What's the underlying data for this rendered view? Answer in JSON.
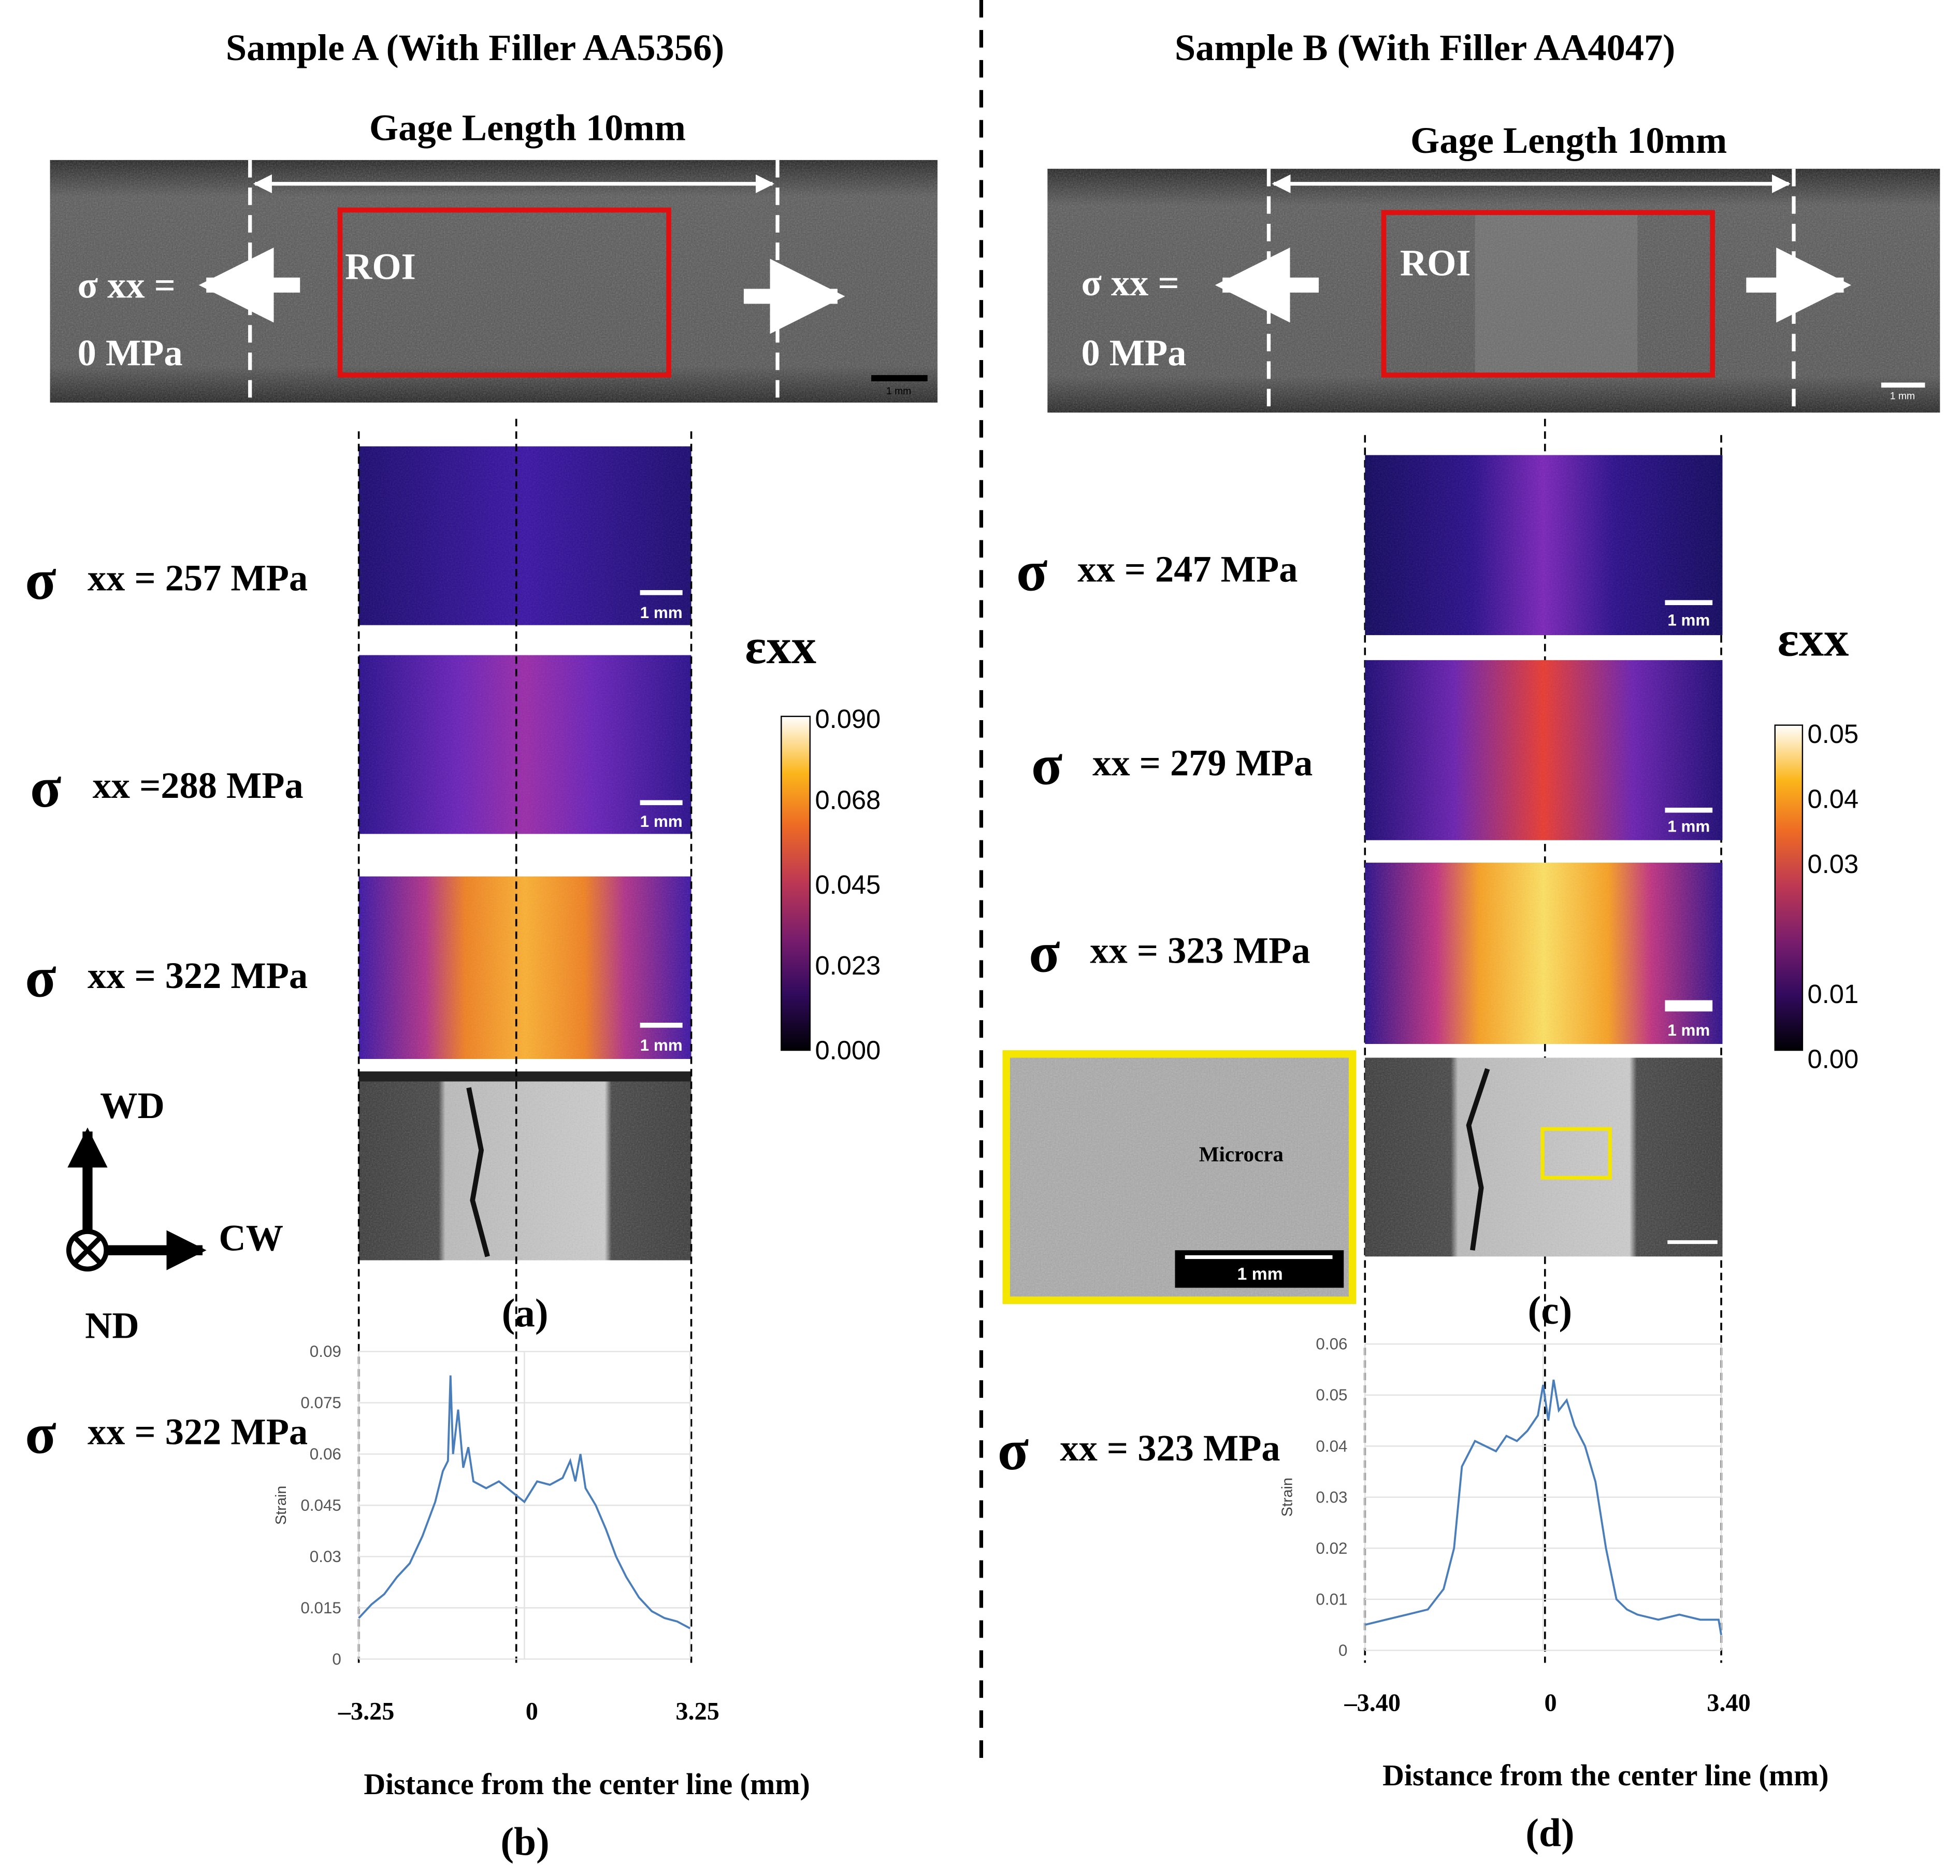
{
  "sample_a": {
    "title": "Sample A (With Filler AA5356)",
    "gage_label": "Gage Length 10mm",
    "roi_label": "ROI",
    "initial_stress": [
      "σ xx =",
      "0 MPa"
    ],
    "photo_scale": "1 mm",
    "maps": [
      {
        "sigma": "σ",
        "label": "xx = 257 MPa",
        "scale": "1 mm"
      },
      {
        "sigma": "σ",
        "label": "xx =288 MPa",
        "scale": "1 mm"
      },
      {
        "sigma": "σ",
        "label": "xx = 322 MPa",
        "scale": "1 mm"
      }
    ],
    "panel_label": "(a)",
    "colorbar": {
      "title": "εxx",
      "lim": [
        0,
        0.09
      ],
      "ticks": [
        {
          "value": 0.09,
          "label": "0.090"
        },
        {
          "value": 0.068,
          "label": "0.068"
        },
        {
          "value": 0.045,
          "label": "0.045"
        },
        {
          "value": 0.023,
          "label": "0.023"
        },
        {
          "value": 0,
          "label": "0.000"
        }
      ]
    }
  },
  "sample_b": {
    "title": "Sample B (With Filler AA4047)",
    "gage_label": "Gage Length 10mm",
    "roi_label": "ROI",
    "initial_stress": [
      "σ xx =",
      "0 MPa"
    ],
    "photo_scale": "1 mm",
    "maps": [
      {
        "sigma": "σ",
        "label": "xx = 247 MPa",
        "scale": "1 mm"
      },
      {
        "sigma": "σ",
        "label": "xx = 279 MPa",
        "scale": "1 mm"
      },
      {
        "sigma": "σ",
        "label": "xx = 323 MPa",
        "scale": "1 mm"
      }
    ],
    "inset_label": "Microcra",
    "inset_scale": "1 mm",
    "panel_label": "(c)",
    "colorbar": {
      "title": "εxx",
      "lim": [
        0,
        0.05
      ],
      "ticks": [
        0.05,
        0.04,
        0.03,
        0.01,
        {
          "value": 0,
          "label": "0.00"
        }
      ]
    }
  },
  "axes_legend": {
    "wd": "WD",
    "cw": "CW",
    "nd": "ND"
  },
  "chart_data": [
    {
      "type": "line",
      "y_label": "Strain",
      "x_label": "Distance from the center line (mm)",
      "panel_label": "(b)",
      "stress_sigma": "σ",
      "stress_label": "xx = 322 MPa",
      "grid": true,
      "xlim": [
        -3.25,
        3.25
      ],
      "xticks": [
        {
          "value": -3.25,
          "label": "–3.25"
        },
        0,
        3.25
      ],
      "ylim": [
        0,
        0.09
      ],
      "yticks": [
        0,
        0.015,
        0.03,
        0.045,
        0.06,
        0.075,
        0.09
      ],
      "series": [
        {
          "color": "#4a7ebb",
          "x": [
            -3.25,
            -3.0,
            -2.75,
            -2.5,
            -2.25,
            -2.0,
            -1.75,
            -1.6,
            -1.5,
            -1.45,
            -1.4,
            -1.3,
            -1.2,
            -1.1,
            -1.0,
            -0.75,
            -0.5,
            -0.25,
            0,
            0.25,
            0.5,
            0.75,
            0.9,
            1.0,
            1.1,
            1.2,
            1.4,
            1.6,
            1.8,
            2.0,
            2.25,
            2.5,
            2.75,
            3.0,
            3.25
          ],
          "values": [
            0.012,
            0.016,
            0.019,
            0.024,
            0.028,
            0.036,
            0.046,
            0.055,
            0.058,
            0.083,
            0.06,
            0.073,
            0.056,
            0.062,
            0.052,
            0.05,
            0.052,
            0.049,
            0.046,
            0.052,
            0.051,
            0.053,
            0.058,
            0.052,
            0.06,
            0.05,
            0.045,
            0.038,
            0.03,
            0.024,
            0.018,
            0.014,
            0.012,
            0.011,
            0.009
          ]
        }
      ]
    },
    {
      "type": "line",
      "y_label": "Strain",
      "x_label": "Distance from the center line (mm)",
      "panel_label": "(d)",
      "stress_sigma": "σ",
      "stress_label": "xx = 323 MPa",
      "grid": true,
      "xlim": [
        -3.4,
        3.4
      ],
      "xticks": [
        {
          "value": -3.4,
          "label": "–3.40"
        },
        0,
        {
          "value": 3.4,
          "label": "3.40"
        }
      ],
      "ylim": [
        0,
        0.06
      ],
      "yticks": [
        0,
        0.01,
        0.02,
        0.03,
        0.04,
        0.05,
        0.06
      ],
      "series": [
        {
          "color": "#4a7ebb",
          "x": [
            -3.4,
            -3.0,
            -2.6,
            -2.2,
            -1.9,
            -1.7,
            -1.55,
            -1.45,
            -1.3,
            -1.1,
            -0.9,
            -0.7,
            -0.5,
            -0.3,
            -0.1,
            0,
            0.1,
            0.2,
            0.3,
            0.45,
            0.6,
            0.8,
            1.0,
            1.2,
            1.4,
            1.6,
            1.8,
            2.2,
            2.6,
            3.0,
            3.35,
            3.4
          ],
          "values": [
            0.005,
            0.006,
            0.007,
            0.008,
            0.012,
            0.02,
            0.036,
            0.038,
            0.041,
            0.04,
            0.039,
            0.042,
            0.041,
            0.043,
            0.046,
            0.052,
            0.045,
            0.053,
            0.047,
            0.049,
            0.044,
            0.04,
            0.033,
            0.02,
            0.01,
            0.008,
            0.007,
            0.006,
            0.007,
            0.006,
            0.006,
            0.003
          ]
        }
      ]
    }
  ]
}
